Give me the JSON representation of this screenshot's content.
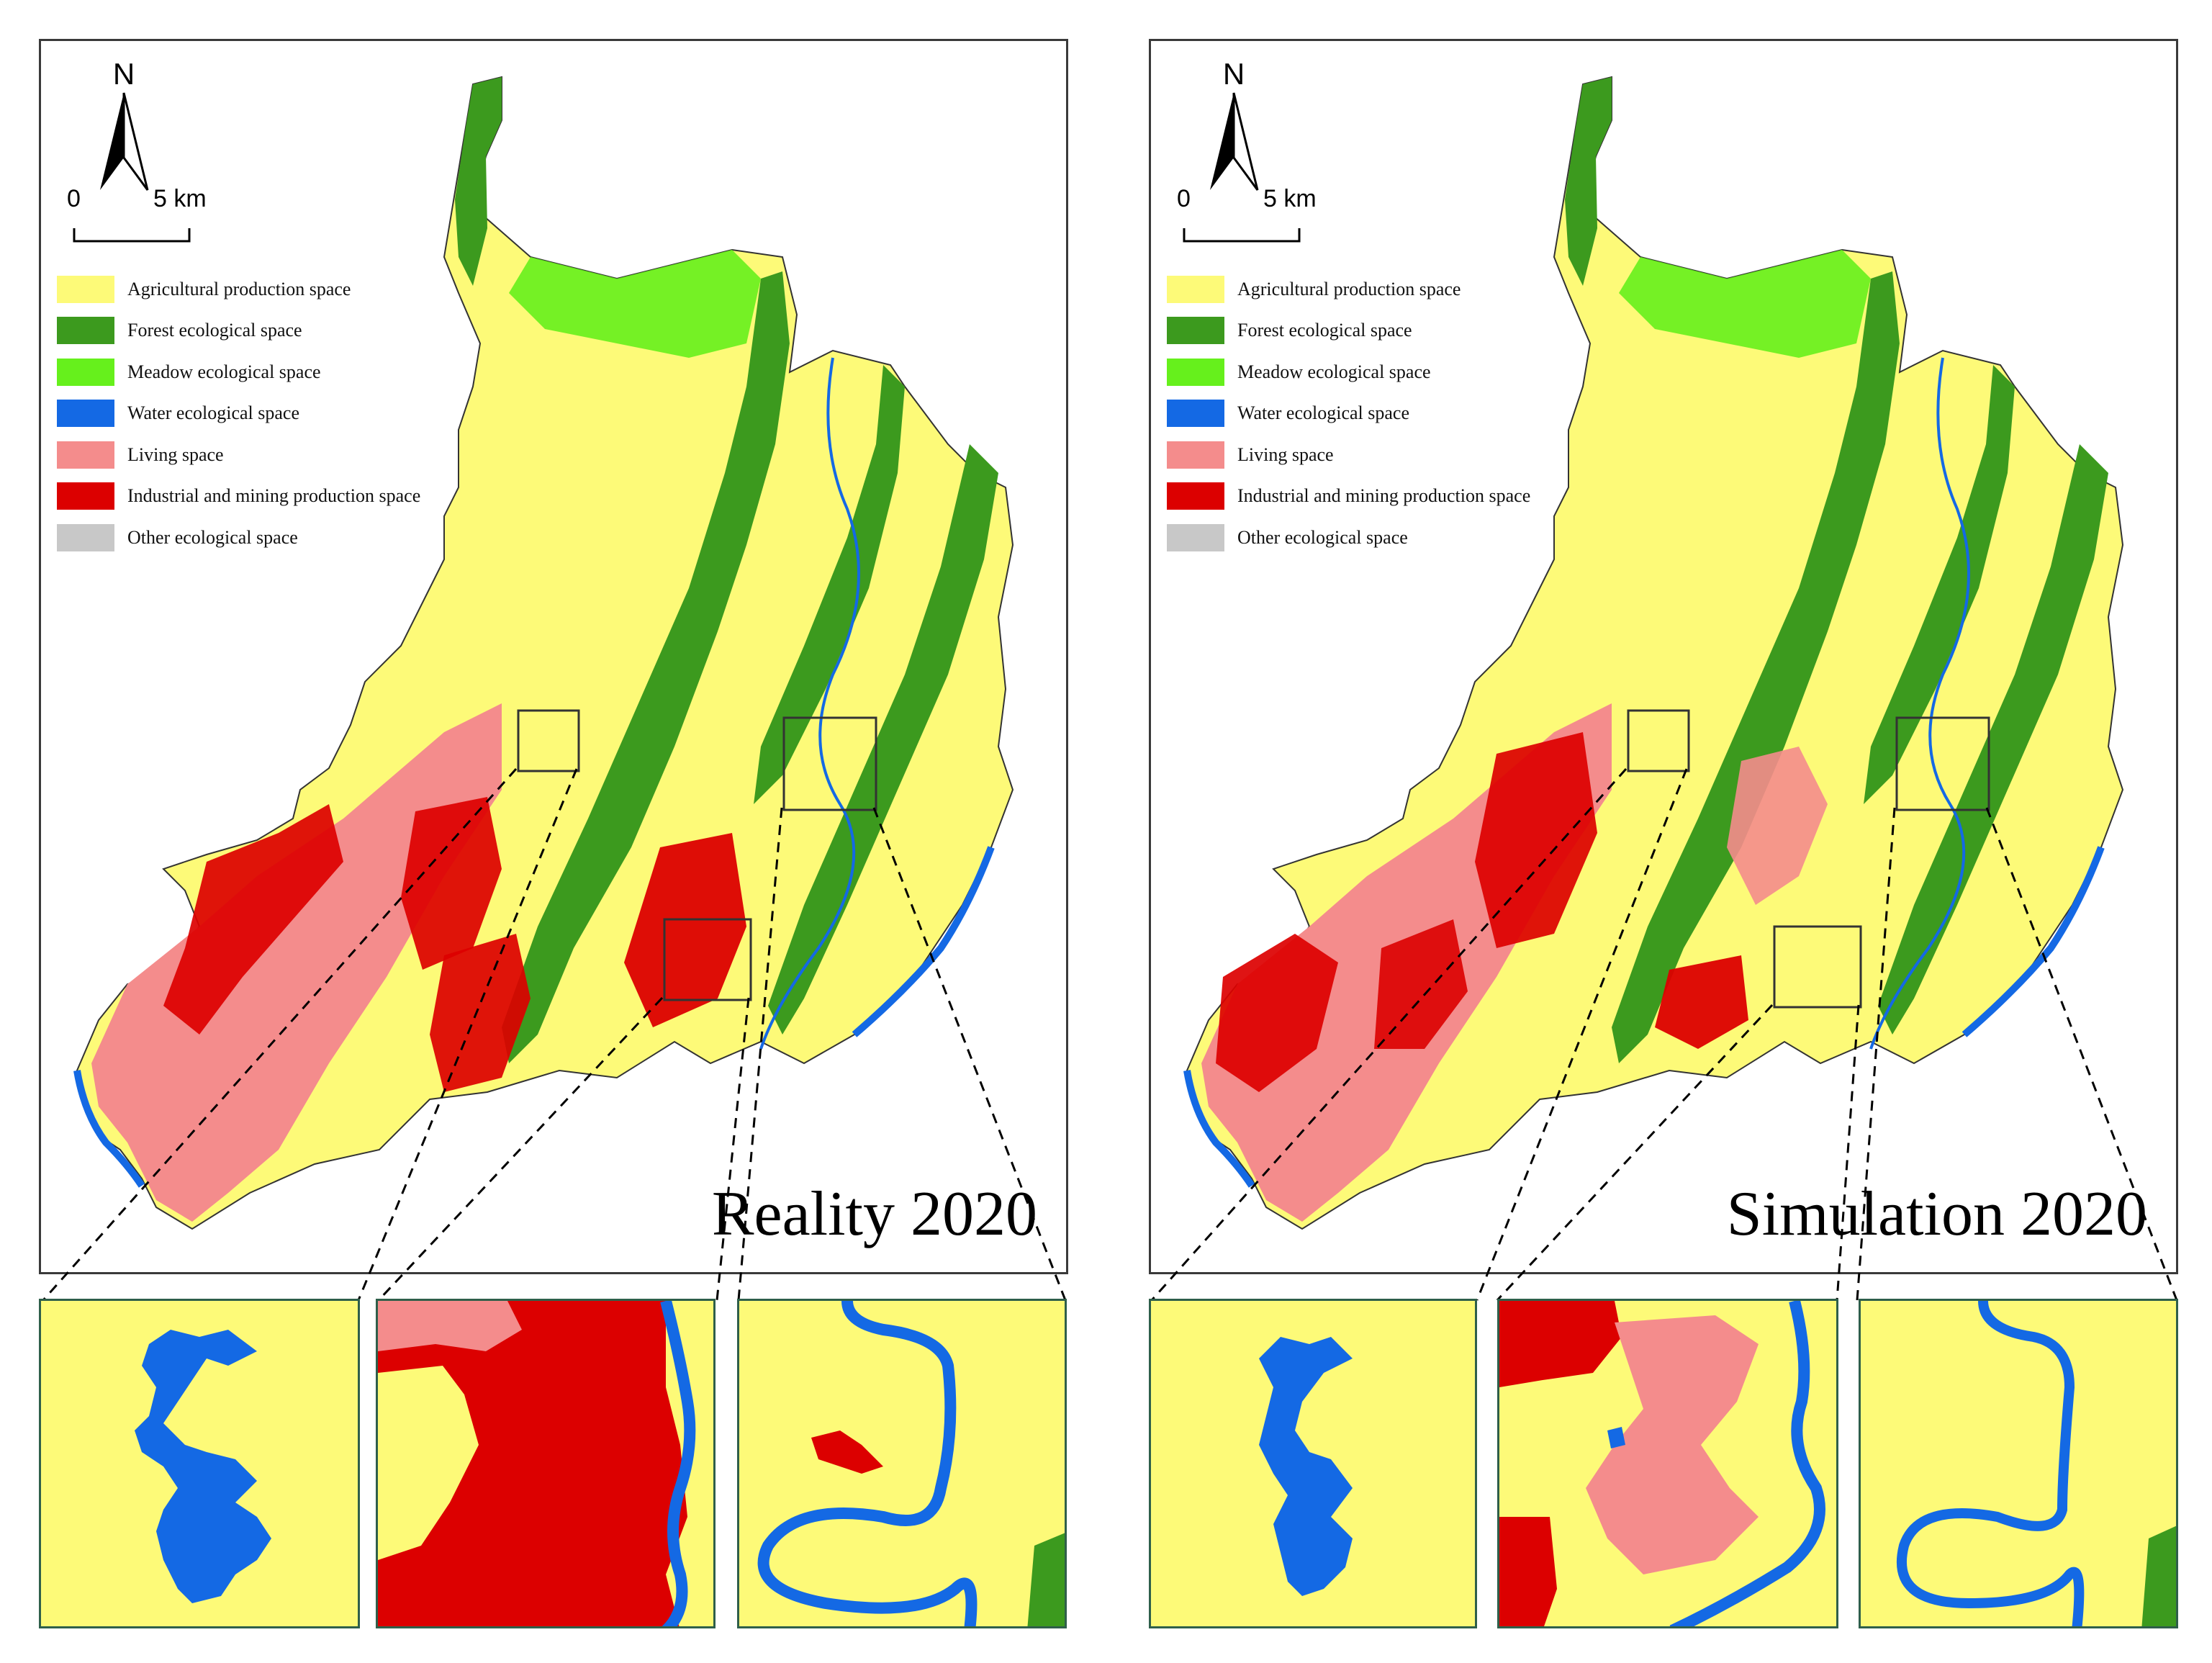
{
  "colors": {
    "agricultural": "#fdfa78",
    "forest": "#3c9a1e",
    "meadow": "#66f01c",
    "water": "#1469e4",
    "living": "#f48c8c",
    "industrial": "#dc0000",
    "other": "#c8c8c8",
    "frame": "#3a3a3a",
    "inset_frame": "#2f5f4a"
  },
  "north_arrow": {
    "letter": "N",
    "icon": "north-arrow-icon"
  },
  "scale_bar": {
    "start_label": "0",
    "end_label": "5 km"
  },
  "legend": [
    {
      "label": "Agricultural production space",
      "color": "#fdfa78"
    },
    {
      "label": "Forest ecological space",
      "color": "#3c9a1e"
    },
    {
      "label": "Meadow ecological space",
      "color": "#66f01c"
    },
    {
      "label": "Water ecological space",
      "color": "#1469e4"
    },
    {
      "label": "Living space",
      "color": "#f48c8c"
    },
    {
      "label": "Industrial and mining production space",
      "color": "#dc0000"
    },
    {
      "label": "Other ecological space",
      "color": "#c8c8c8"
    }
  ],
  "panels": [
    {
      "title": "Reality 2020"
    },
    {
      "title": "Simulation 2020"
    }
  ]
}
